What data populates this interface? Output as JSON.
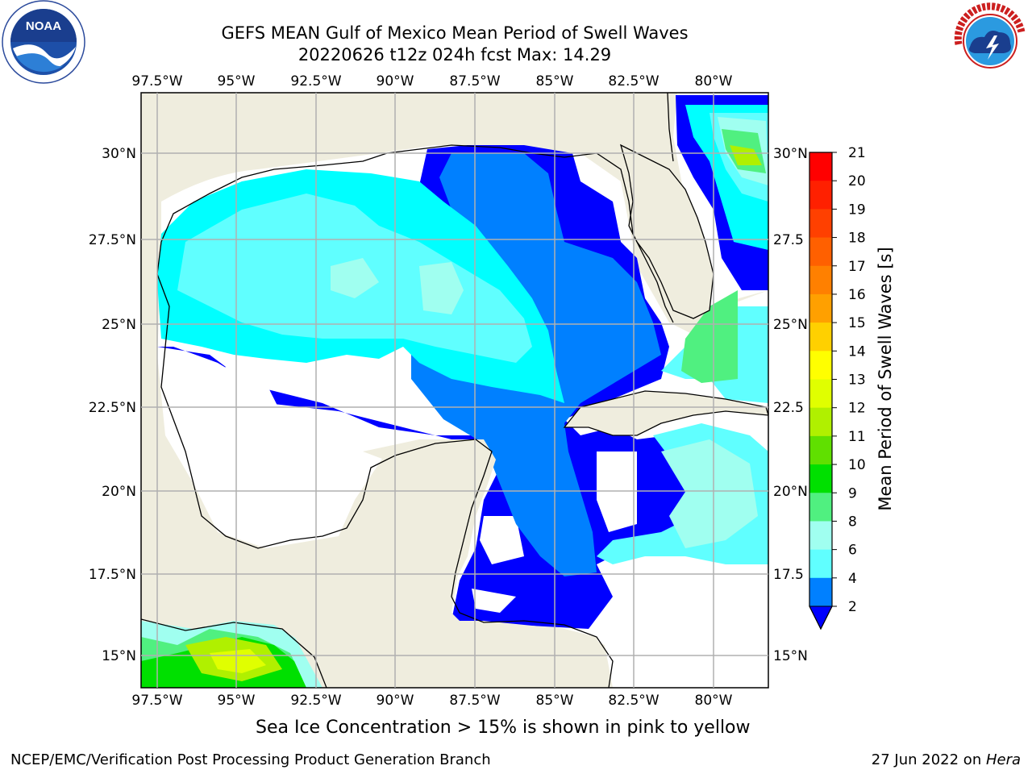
{
  "header": {
    "title_line1": "GEFS MEAN Gulf of Mexico Mean Period of Swell Waves",
    "title_line2": "20220626 t12z 024h fcst   Max: 14.29"
  },
  "logos": {
    "left": "noaa-logo",
    "right": "national-weather-service-logo"
  },
  "map": {
    "lon_ticks_top": [
      "97.5°W",
      "95°W",
      "92.5°W",
      "90°W",
      "87.5°W",
      "85°W",
      "82.5°W",
      "80°W"
    ],
    "lon_ticks_bottom": [
      "97.5°W",
      "95°W",
      "92.5°W",
      "90°W",
      "87.5°W",
      "85°W",
      "82.5°W",
      "80°W"
    ],
    "lat_ticks_left": [
      "30°N",
      "27.5°N",
      "25°N",
      "22.5°N",
      "20°N",
      "17.5°N",
      "15°N"
    ],
    "lat_ticks_right": [
      "30°N",
      "27.5",
      "25°N",
      "22.5",
      "20°N",
      "17.5",
      "15°N"
    ],
    "land_color": "#efedde",
    "grid_color": "#b0b0b0"
  },
  "colorbar": {
    "label": "Mean Period of Swell Waves [s]",
    "ticks": [
      "21",
      "20",
      "19",
      "18",
      "17",
      "16",
      "15",
      "14",
      "13",
      "12",
      "11",
      "10",
      "9",
      "8",
      "6",
      "4",
      "2"
    ],
    "colors_top_to_bottom": [
      "#ff0000",
      "#ff2000",
      "#ff4000",
      "#ff6000",
      "#ff8000",
      "#ffa000",
      "#ffd000",
      "#ffff00",
      "#e0ff00",
      "#b0f000",
      "#60e000",
      "#00e000",
      "#50f080",
      "#a0fff0",
      "#60ffff",
      "#00ffff",
      "#0080ff"
    ],
    "extend_color": "#0000ff"
  },
  "notes": {
    "sea_ice": "Sea Ice Concentration > 15% is shown in pink to yellow"
  },
  "footer": {
    "left": "NCEP/EMC/Verification Post Processing Product Generation Branch",
    "date": "27 Jun 2022 on ",
    "machine": "Hera"
  }
}
